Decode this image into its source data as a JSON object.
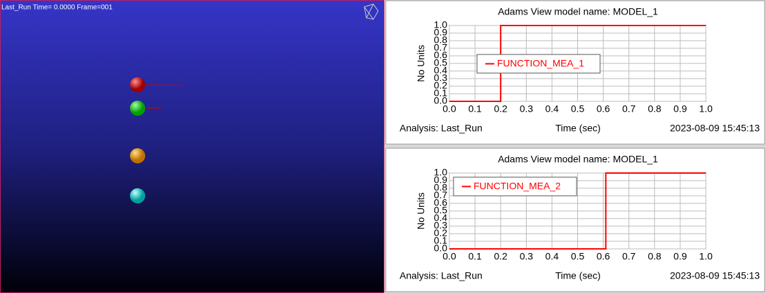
{
  "viewport": {
    "status": "Last_Run   Time= 0.0000  Frame=001"
  },
  "chart_data": [
    {
      "type": "line",
      "title": "Adams View model name: MODEL_1",
      "ylabel": "No Units",
      "xlabel": "Time (sec)",
      "footer_left": "Analysis:  Last_Run",
      "footer_right": "2023-08-09 15:45:13",
      "x": [
        0,
        0.2,
        0.2,
        1
      ],
      "series": [
        {
          "name": "FUNCTION_MEA_1",
          "color": "#ff0000",
          "values": [
            0,
            0,
            1,
            1
          ]
        }
      ],
      "xlim": [
        0,
        1
      ],
      "ylim": [
        0,
        1
      ],
      "xticks": [
        {
          "value": 0,
          "label": "0.0"
        },
        0.1,
        0.2,
        0.3,
        0.4,
        0.5,
        0.6,
        0.7,
        0.8,
        0.9,
        {
          "value": 1,
          "label": "1.0"
        }
      ],
      "yticks": [
        {
          "value": 0,
          "label": "0.0"
        },
        0.1,
        0.2,
        0.3,
        0.4,
        0.5,
        0.6,
        0.7,
        0.8,
        0.9,
        {
          "value": 1,
          "label": "1.0"
        }
      ],
      "grid": true,
      "legend": "center left"
    },
    {
      "type": "line",
      "title": "Adams View model name: MODEL_1",
      "ylabel": "No Units",
      "xlabel": "Time (sec)",
      "footer_left": "Analysis:  Last_Run",
      "footer_right": "2023-08-09 15:45:13",
      "x": [
        0,
        0.61,
        0.61,
        1
      ],
      "series": [
        {
          "name": "FUNCTION_MEA_2",
          "color": "#ff0000",
          "values": [
            0,
            0,
            1,
            1
          ]
        }
      ],
      "xlim": [
        0,
        1
      ],
      "ylim": [
        0,
        1
      ],
      "xticks": [
        {
          "value": 0,
          "label": "0.0"
        },
        0.1,
        0.2,
        0.3,
        0.4,
        0.5,
        0.6,
        0.7,
        0.8,
        0.9,
        {
          "value": 1,
          "label": "1.0"
        }
      ],
      "yticks": [
        {
          "value": 0,
          "label": "0.0"
        },
        0.1,
        0.2,
        0.3,
        0.4,
        0.5,
        0.6,
        0.7,
        0.8,
        0.9,
        {
          "value": 1,
          "label": "1.0"
        }
      ],
      "grid": true,
      "legend": "upper left"
    }
  ]
}
